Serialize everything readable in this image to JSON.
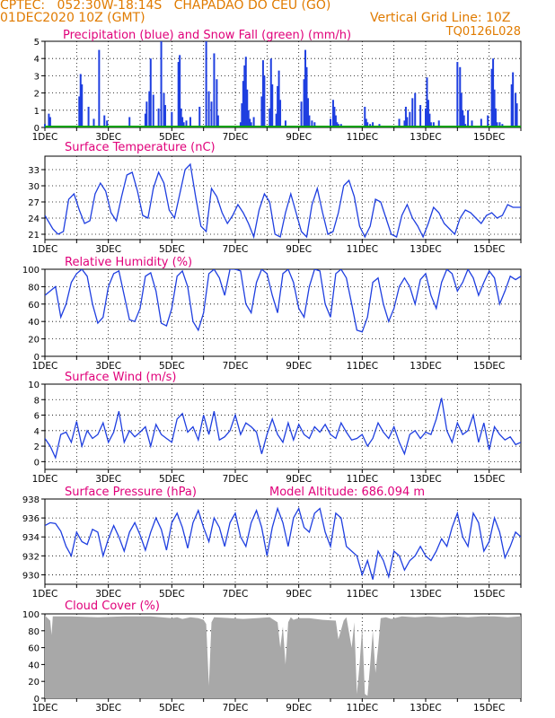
{
  "header": {
    "line1": "CPTEC:   052:30W-18:14S   CHAPADAO DO CEU (GO)",
    "line2": "01DEC2020 10Z (GMT)",
    "grid_note": "Vertical Grid Line: 10Z",
    "code": "TQ0126L028"
  },
  "colors": {
    "header": "#e07b00",
    "title": "#e0007a",
    "line": "#1f3fe0",
    "snow": "#00a000",
    "cloud": "#a8a8a8"
  },
  "chart_data": [
    {
      "id": "precip",
      "type": "bar",
      "title": "Precipitation (blue) and Snow Fall (green) (mm/h)",
      "ylim": [
        0,
        5
      ],
      "yticks": [
        0,
        1,
        2,
        3,
        4,
        5
      ],
      "xlim": [
        0,
        360
      ],
      "xtick_labels": [
        "1DEC",
        "3DEC",
        "5DEC",
        "7DEC",
        "9DEC",
        "11DEC",
        "13DEC",
        "15DEC"
      ],
      "x_hours": [
        0,
        3,
        4,
        26,
        27,
        28,
        33,
        37,
        41,
        45,
        47,
        64,
        76,
        77,
        79,
        80,
        82,
        86,
        88,
        90,
        91,
        96,
        101,
        102,
        103,
        104,
        105,
        107,
        110,
        117,
        122,
        124,
        126,
        128,
        130,
        131,
        148,
        149,
        150,
        151,
        152,
        153,
        154,
        155,
        156,
        158,
        164,
        165,
        166,
        170,
        171,
        172,
        175,
        176,
        177,
        178,
        182,
        194,
        196,
        197,
        198,
        199,
        200,
        202,
        204,
        216,
        218,
        219,
        220,
        221,
        222,
        224,
        242,
        243,
        244,
        246,
        248,
        253,
        268,
        272,
        273,
        274,
        276,
        278,
        280,
        284,
        288,
        289,
        290,
        291,
        292,
        294,
        298,
        312,
        314,
        315,
        316,
        317,
        318,
        320,
        323,
        330,
        335,
        338,
        339,
        340,
        341,
        342,
        344,
        346,
        353,
        354,
        356,
        357
      ],
      "values": [
        0.2,
        0.8,
        0.6,
        1.8,
        3.1,
        2.5,
        1.2,
        0.5,
        4.5,
        0.7,
        0.4,
        0.6,
        0.8,
        1.5,
        2.1,
        4.0,
        1.9,
        1.1,
        5.0,
        2.0,
        1.3,
        0.9,
        3.8,
        4.2,
        1.1,
        0.6,
        0.3,
        0.4,
        0.6,
        1.2,
        5.0,
        2.1,
        1.5,
        4.3,
        2.8,
        0.7,
        0.3,
        1.4,
        2.7,
        3.6,
        4.1,
        2.2,
        1.0,
        0.5,
        0.3,
        0.6,
        1.8,
        3.9,
        3.0,
        1.1,
        4.0,
        2.5,
        0.8,
        2.4,
        3.3,
        1.6,
        0.4,
        1.5,
        2.8,
        4.5,
        3.5,
        1.7,
        0.7,
        0.4,
        0.3,
        0.5,
        1.6,
        1.2,
        0.7,
        0.3,
        0.2,
        0.2,
        1.2,
        0.5,
        0.3,
        0.2,
        0.3,
        0.2,
        0.5,
        0.4,
        1.2,
        0.6,
        0.9,
        1.7,
        2.0,
        1.3,
        1.1,
        2.9,
        1.6,
        0.8,
        0.3,
        0.3,
        0.4,
        3.8,
        3.5,
        2.0,
        1.0,
        0.7,
        0.2,
        1.0,
        0.4,
        0.5,
        0.7,
        3.4,
        4.0,
        2.2,
        1.1,
        0.3,
        0.3,
        0.2,
        2.5,
        3.2,
        2.0,
        1.4
      ]
    },
    {
      "id": "temperature",
      "type": "line",
      "title": "Surface Temperature (nC)",
      "ylim": [
        20,
        35.5
      ],
      "yticks": [
        21,
        24,
        27,
        30,
        33
      ],
      "xtick_labels": [
        "1DEC",
        "3DEC",
        "5DEC",
        "7DEC",
        "9DEC",
        "11DEC",
        "13DEC",
        "15DEC"
      ],
      "x_hours": [
        0,
        6,
        10,
        14,
        18,
        22,
        26,
        30,
        34,
        38,
        42,
        46,
        50,
        54,
        58,
        62,
        66,
        70,
        74,
        78,
        82,
        86,
        90,
        94,
        98,
        102,
        106,
        110,
        114,
        118,
        122,
        126,
        130,
        134,
        138,
        142,
        146,
        150,
        154,
        158,
        162,
        166,
        170,
        174,
        178,
        182,
        186,
        190,
        194,
        198,
        202,
        206,
        210,
        214,
        218,
        222,
        226,
        230,
        234,
        238,
        242,
        246,
        250,
        254,
        258,
        262,
        266,
        270,
        274,
        278,
        282,
        286,
        290,
        294,
        298,
        302,
        306,
        310,
        314,
        318,
        322,
        326,
        330,
        334,
        338,
        342,
        346,
        350,
        354,
        360
      ],
      "values": [
        24.5,
        22.0,
        21.0,
        21.5,
        27.5,
        28.5,
        25.5,
        23.0,
        23.5,
        28.5,
        30.5,
        29.0,
        25.0,
        23.5,
        28.0,
        32.0,
        32.5,
        29.0,
        24.5,
        24.0,
        29.5,
        32.5,
        30.5,
        25.5,
        24.0,
        28.5,
        33.0,
        34.0,
        28.0,
        22.5,
        21.5,
        29.5,
        28.0,
        25.0,
        23.0,
        24.5,
        26.5,
        25.0,
        23.0,
        20.5,
        25.5,
        28.5,
        27.0,
        21.0,
        20.5,
        25.0,
        28.5,
        25.0,
        21.5,
        20.5,
        26.5,
        29.5,
        25.0,
        21.0,
        21.5,
        25.0,
        30.0,
        31.0,
        28.0,
        22.5,
        20.5,
        22.5,
        27.5,
        27.0,
        24.0,
        21.0,
        20.5,
        24.5,
        26.5,
        24.0,
        22.5,
        20.5,
        23.0,
        26.0,
        25.0,
        23.0,
        22.0,
        21.0,
        24.0,
        25.5,
        25.0,
        24.0,
        23.0,
        24.5,
        25.0,
        24.0,
        24.5,
        26.5,
        26.0,
        26.0
      ]
    },
    {
      "id": "humidity",
      "type": "line",
      "title": "Relative Humidity (%)",
      "ylim": [
        0,
        100
      ],
      "yticks": [
        0,
        20,
        40,
        60,
        80,
        100
      ],
      "xtick_labels": [
        "1DEC",
        "3DEC",
        "5DEC",
        "7DEC",
        "9DEC",
        "11DEC",
        "13DEC",
        "15DEC"
      ],
      "x_hours": [
        0,
        4,
        8,
        12,
        16,
        20,
        24,
        28,
        32,
        36,
        40,
        44,
        48,
        52,
        56,
        60,
        64,
        68,
        72,
        76,
        80,
        84,
        88,
        92,
        96,
        100,
        104,
        108,
        112,
        116,
        120,
        124,
        128,
        132,
        136,
        140,
        144,
        148,
        152,
        156,
        160,
        164,
        168,
        172,
        176,
        180,
        184,
        188,
        192,
        196,
        200,
        204,
        208,
        212,
        216,
        220,
        224,
        228,
        232,
        236,
        240,
        244,
        248,
        252,
        256,
        260,
        264,
        268,
        272,
        276,
        280,
        284,
        288,
        292,
        296,
        300,
        304,
        308,
        312,
        316,
        320,
        324,
        328,
        332,
        336,
        340,
        344,
        348,
        352,
        356,
        360
      ],
      "values": [
        70,
        75,
        80,
        45,
        60,
        85,
        95,
        100,
        92,
        60,
        38,
        45,
        80,
        95,
        98,
        70,
        42,
        40,
        55,
        92,
        96,
        75,
        38,
        35,
        55,
        92,
        98,
        80,
        40,
        30,
        50,
        95,
        100,
        90,
        70,
        100,
        100,
        98,
        60,
        50,
        85,
        100,
        95,
        70,
        50,
        95,
        100,
        85,
        55,
        45,
        80,
        100,
        98,
        60,
        45,
        95,
        100,
        90,
        60,
        30,
        28,
        45,
        85,
        90,
        60,
        40,
        55,
        80,
        90,
        80,
        60,
        88,
        95,
        70,
        55,
        85,
        100,
        95,
        75,
        85,
        100,
        90,
        70,
        85,
        98,
        90,
        60,
        75,
        92,
        88,
        92
      ]
    },
    {
      "id": "wind",
      "type": "line",
      "title": "Surface Wind (m/s)",
      "ylim": [
        -1,
        10
      ],
      "yticks": [
        0,
        2,
        4,
        6,
        8,
        10
      ],
      "xtick_labels": [
        "1DEC",
        "3DEC",
        "5DEC",
        "7DEC",
        "9DEC",
        "11DEC",
        "13DEC",
        "15DEC"
      ],
      "x_hours": [
        0,
        4,
        8,
        12,
        16,
        20,
        24,
        28,
        32,
        36,
        40,
        44,
        48,
        52,
        56,
        60,
        64,
        68,
        72,
        76,
        80,
        84,
        88,
        92,
        96,
        100,
        104,
        108,
        112,
        116,
        120,
        124,
        128,
        132,
        136,
        140,
        144,
        148,
        152,
        156,
        160,
        164,
        168,
        172,
        176,
        180,
        184,
        188,
        192,
        196,
        200,
        204,
        208,
        212,
        216,
        220,
        224,
        228,
        232,
        236,
        240,
        244,
        248,
        252,
        256,
        260,
        264,
        268,
        272,
        276,
        280,
        284,
        288,
        292,
        296,
        300,
        304,
        308,
        312,
        316,
        320,
        324,
        328,
        332,
        336,
        340,
        344,
        348,
        352,
        356,
        360
      ],
      "values": [
        3.0,
        2.0,
        0.5,
        3.5,
        3.8,
        2.5,
        5.2,
        2.0,
        4.0,
        3.0,
        3.5,
        5.0,
        2.5,
        3.8,
        6.5,
        2.5,
        4.0,
        3.2,
        3.8,
        4.5,
        2.0,
        4.8,
        3.5,
        3.0,
        2.5,
        5.5,
        6.2,
        3.8,
        4.5,
        2.8,
        6.0,
        3.5,
        6.5,
        2.8,
        3.2,
        4.0,
        6.0,
        3.5,
        5.0,
        4.5,
        3.8,
        1.0,
        3.5,
        5.5,
        3.5,
        2.5,
        5.0,
        2.8,
        4.8,
        3.5,
        3.0,
        4.5,
        3.8,
        4.8,
        3.5,
        3.0,
        5.0,
        3.8,
        2.8,
        3.0,
        3.5,
        2.0,
        3.0,
        5.0,
        3.8,
        3.0,
        4.5,
        2.5,
        1.0,
        3.5,
        4.0,
        3.0,
        3.8,
        3.5,
        5.5,
        8.2,
        4.0,
        2.5,
        5.0,
        3.5,
        4.0,
        6.0,
        2.5,
        5.0,
        1.5,
        4.5,
        3.5,
        2.8,
        3.2,
        2.2,
        2.5
      ]
    },
    {
      "id": "pressure",
      "type": "line",
      "title": "Surface Pressure (hPa)",
      "annotation": "Model Altitude: 686.094  m",
      "ylim": [
        929,
        938
      ],
      "yticks": [
        930,
        932,
        934,
        936,
        938
      ],
      "xtick_labels": [
        "1DEC",
        "3DEC",
        "5DEC",
        "7DEC",
        "9DEC",
        "11DEC",
        "13DEC",
        "15DEC"
      ],
      "x_hours": [
        0,
        4,
        8,
        12,
        16,
        20,
        24,
        28,
        32,
        36,
        40,
        44,
        48,
        52,
        56,
        60,
        64,
        68,
        72,
        76,
        80,
        84,
        88,
        92,
        96,
        100,
        104,
        108,
        112,
        116,
        120,
        124,
        128,
        132,
        136,
        140,
        144,
        148,
        152,
        156,
        160,
        164,
        168,
        172,
        176,
        180,
        184,
        188,
        192,
        196,
        200,
        204,
        208,
        212,
        216,
        220,
        224,
        228,
        232,
        236,
        240,
        244,
        248,
        252,
        256,
        260,
        264,
        268,
        272,
        276,
        280,
        284,
        288,
        292,
        296,
        300,
        304,
        308,
        312,
        316,
        320,
        324,
        328,
        332,
        336,
        340,
        344,
        348,
        352,
        356,
        360
      ],
      "values": [
        935.2,
        935.5,
        935.4,
        934.6,
        933.0,
        932.0,
        934.5,
        933.5,
        933.2,
        934.8,
        934.5,
        932.0,
        933.8,
        935.2,
        934.0,
        932.5,
        934.5,
        935.5,
        934.2,
        932.6,
        934.5,
        936.0,
        934.8,
        932.6,
        935.5,
        936.5,
        935.0,
        932.8,
        935.5,
        936.8,
        935.0,
        933.5,
        936.0,
        935.0,
        933.0,
        935.5,
        936.5,
        934.0,
        933.0,
        935.5,
        936.8,
        935.0,
        932.0,
        935.0,
        937.0,
        935.5,
        933.0,
        936.0,
        937.0,
        935.0,
        934.5,
        936.5,
        937.0,
        934.5,
        933.0,
        936.5,
        936.0,
        933.0,
        932.5,
        932.0,
        930.0,
        931.5,
        929.5,
        932.5,
        931.5,
        929.8,
        932.5,
        932.0,
        930.5,
        931.5,
        932.0,
        933.0,
        932.0,
        931.5,
        932.5,
        933.8,
        933.0,
        935.0,
        936.5,
        934.0,
        933.0,
        936.5,
        935.5,
        932.5,
        933.5,
        936.0,
        934.5,
        931.8,
        933.0,
        934.5,
        934.0
      ]
    },
    {
      "id": "cloud",
      "type": "area",
      "title": "Cloud Cover (%)",
      "ylim": [
        0,
        100
      ],
      "yticks": [
        0,
        20,
        40,
        60,
        80,
        100
      ],
      "xtick_labels": [
        "1DEC",
        "3DEC",
        "5DEC",
        "7DEC",
        "9DEC",
        "11DEC",
        "13DEC",
        "15DEC"
      ],
      "x_hours": [
        0,
        4,
        5,
        6,
        20,
        40,
        60,
        80,
        96,
        100,
        104,
        110,
        116,
        120,
        122,
        124,
        126,
        128,
        140,
        150,
        160,
        170,
        176,
        178,
        180,
        182,
        184,
        186,
        188,
        190,
        192,
        200,
        210,
        220,
        222,
        226,
        228,
        232,
        234,
        236,
        238,
        240,
        242,
        244,
        246,
        248,
        250,
        252,
        254,
        258,
        262,
        270,
        280,
        290,
        300,
        310,
        320,
        330,
        340,
        350,
        360
      ],
      "values": [
        98,
        92,
        75,
        97,
        97,
        96,
        97,
        97,
        95,
        96,
        94,
        96,
        95,
        93,
        88,
        15,
        90,
        96,
        95,
        94,
        95,
        96,
        90,
        60,
        85,
        40,
        90,
        96,
        93,
        94,
        95,
        95,
        93,
        92,
        70,
        92,
        96,
        60,
        90,
        5,
        40,
        85,
        5,
        3,
        40,
        80,
        30,
        60,
        95,
        96,
        94,
        97,
        96,
        97,
        96,
        97,
        96,
        97,
        97,
        96,
        97
      ]
    }
  ]
}
